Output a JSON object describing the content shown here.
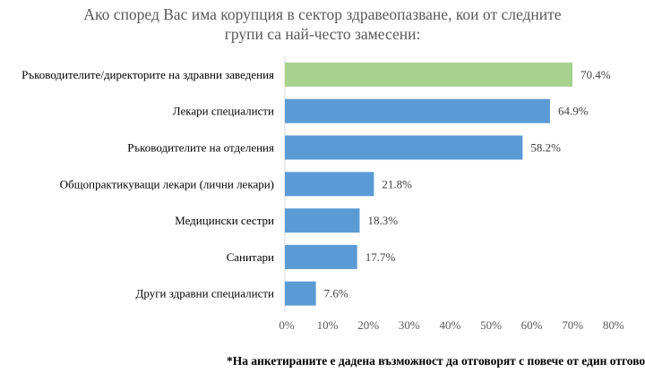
{
  "chart_data": {
    "type": "bar",
    "orientation": "horizontal",
    "title_lines": [
      "Ако според Вас има корупция в сектор здравеопазване, кои от следните",
      "групи са най-често замесени:"
    ],
    "categories": [
      "Ръководителите/директорите на здравни заведения",
      "Лекари специалисти",
      "Ръководителите на отделения",
      "Общопрактикуващи лекари (лични лекари)",
      "Медицински сестри",
      "Санитари",
      "Други здравни специалисти"
    ],
    "values": [
      70.4,
      64.9,
      58.2,
      21.8,
      18.3,
      17.7,
      7.6
    ],
    "value_labels": [
      "70.4%",
      "64.9%",
      "58.2%",
      "21.8%",
      "18.3%",
      "17.7%",
      "7.6%"
    ],
    "colors": [
      "#a9d18e",
      "#5b9bd5",
      "#5b9bd5",
      "#5b9bd5",
      "#5b9bd5",
      "#5b9bd5",
      "#5b9bd5"
    ],
    "xlim": [
      0,
      80
    ],
    "xticks": [
      "0%",
      "10%",
      "20%",
      "30%",
      "40%",
      "50%",
      "60%",
      "70%",
      "80%"
    ],
    "xlabel": "",
    "ylabel": "",
    "grid": false,
    "legend": "none"
  },
  "footnote": "*На анкетираните е дадена възможност да отговорят с повече от един отговор"
}
